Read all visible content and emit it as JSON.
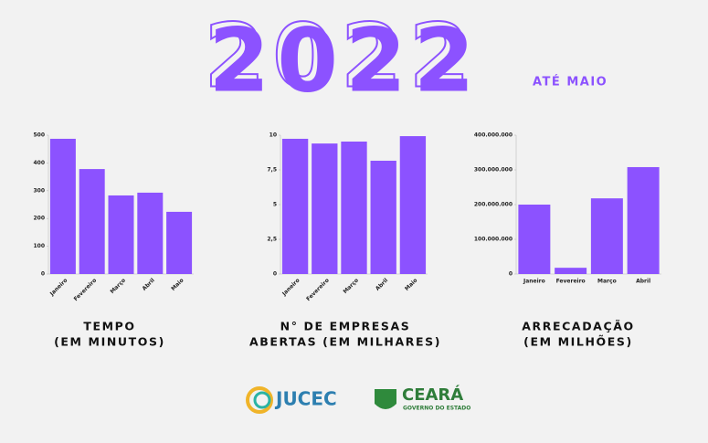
{
  "header": {
    "title": "2022",
    "subtitle": "ATÉ MAIO"
  },
  "footer": {
    "logos": [
      "JUCEC",
      "CEARÁ",
      "GOVERNO DO ESTADO"
    ]
  },
  "chart_data": [
    {
      "type": "bar",
      "title": [
        "TEMPO",
        "(EM MINUTOS)"
      ],
      "color": "#8c52ff",
      "categories": [
        "Janeiro",
        "Fevereiro",
        "Março",
        "Abril",
        "Maio"
      ],
      "values": [
        487,
        378,
        283,
        293,
        224
      ],
      "ylim": [
        0,
        500
      ],
      "yticks": [
        0,
        100,
        200,
        300,
        400,
        500
      ]
    },
    {
      "type": "bar",
      "title": [
        "N° DE EMPRESAS",
        "ABERTAS (EM MILHARES)"
      ],
      "color": "#8c52ff",
      "categories": [
        "Janeiro",
        "Fevereiro",
        "Março",
        "Abril",
        "Maio"
      ],
      "values": [
        9.74,
        9.4,
        9.54,
        8.16,
        9.93
      ],
      "ylim": [
        0,
        10
      ],
      "yticks": [
        0,
        {
          "value": 2.5,
          "label": "2,5"
        },
        5,
        {
          "value": 7.5,
          "label": "7,5"
        },
        10
      ]
    },
    {
      "type": "bar",
      "title": [
        "ARRECADAÇÃO",
        "(EM MILHÕES)"
      ],
      "color": "#8c52ff",
      "categories": [
        "Janeiro",
        "Fevereiro",
        "Março",
        "Abril"
      ],
      "values": [
        200000000,
        18000000,
        218000000,
        308000000
      ],
      "ylim": [
        0,
        400000000
      ],
      "yticks": [
        0,
        {
          "value": 100000000,
          "label": "100.000.000"
        },
        {
          "value": 200000000,
          "label": "200.000.000"
        },
        {
          "value": 300000000,
          "label": "300.000.000"
        },
        {
          "value": 400000000,
          "label": "400.000.000"
        }
      ]
    }
  ]
}
